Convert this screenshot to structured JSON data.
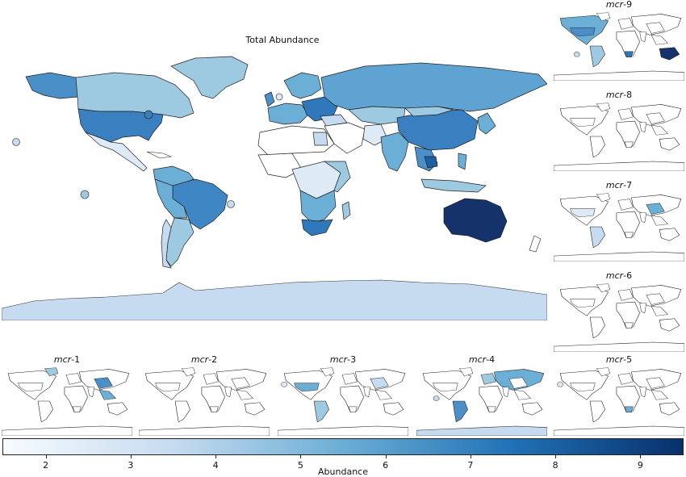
{
  "main_title": "Total Abundance",
  "panels": [
    {
      "id": "mcr-9",
      "gene": "mcr",
      "suffix": "-9"
    },
    {
      "id": "mcr-8",
      "gene": "mcr",
      "suffix": "-8"
    },
    {
      "id": "mcr-7",
      "gene": "mcr",
      "suffix": "-7"
    },
    {
      "id": "mcr-6",
      "gene": "mcr",
      "suffix": "-6"
    },
    {
      "id": "mcr-1",
      "gene": "mcr",
      "suffix": "-1"
    },
    {
      "id": "mcr-2",
      "gene": "mcr",
      "suffix": "-2"
    },
    {
      "id": "mcr-3",
      "gene": "mcr",
      "suffix": "-3"
    },
    {
      "id": "mcr-4",
      "gene": "mcr",
      "suffix": "-4"
    },
    {
      "id": "mcr-5",
      "gene": "mcr",
      "suffix": "-5"
    }
  ],
  "colorbar": {
    "label": "Abundance",
    "min": 1.5,
    "max": 9.5,
    "ticks": [
      "2",
      "3",
      "4",
      "5",
      "6",
      "7",
      "8",
      "9"
    ],
    "colors": [
      "#f7fbff",
      "#c6dbef",
      "#6baed6",
      "#2171b5",
      "#08306b"
    ]
  },
  "total_abundance_levels": {
    "Australia": 9.3,
    "Cambodia": 7.0,
    "Thailand": 5.5,
    "China": 6.0,
    "United States": 6.3,
    "Brazil": 5.8,
    "South Africa": 6.2,
    "Russia": 5.0,
    "Canada": 5.0,
    "Antarctica": 3.0,
    "Greenland": 4.0
  },
  "marks": {
    "pacific_dot": "Pacific marker"
  }
}
